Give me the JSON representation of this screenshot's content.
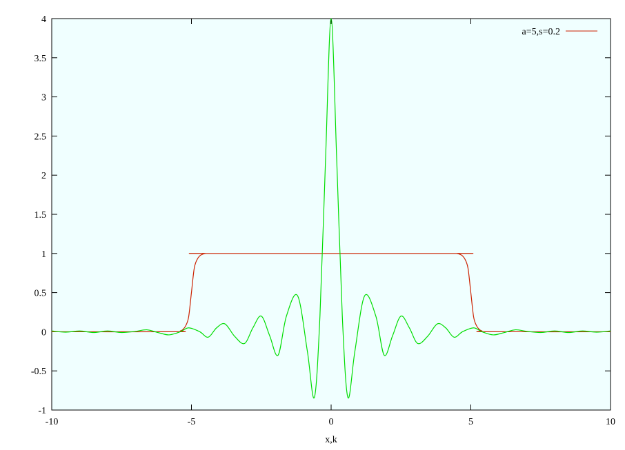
{
  "chart_data": {
    "type": "line",
    "title": "",
    "xlabel": "x,k",
    "ylabel": "",
    "xlim": [
      -10,
      10
    ],
    "ylim": [
      -1,
      4
    ],
    "x_ticks": [
      -10,
      -5,
      0,
      5,
      10
    ],
    "y_ticks": [
      -1,
      -0.5,
      0,
      0.5,
      1,
      1.5,
      2,
      2.5,
      3,
      3.5,
      4
    ],
    "x_tick_labels": [
      "-10",
      "-5",
      "0",
      "5",
      "10"
    ],
    "y_tick_labels": [
      "-1",
      "-0.5",
      "0",
      "0.5",
      "1",
      "1.5",
      "2",
      "2.5",
      "3",
      "3.5",
      "4"
    ],
    "background": "#f0ffff",
    "grid": false,
    "legend_position": "top-right",
    "series": [
      {
        "name": "a=5,s=0.2",
        "color": "#cc2200",
        "x": [
          -10,
          -5.6,
          -5.4,
          -5.3,
          -5.2,
          -5.1,
          -5.0,
          -4.9,
          -4.8,
          -4.7,
          -4.6,
          -4.5,
          -4.4,
          4.4,
          4.5,
          4.6,
          4.7,
          4.8,
          4.9,
          5.0,
          5.1,
          5.2,
          5.3,
          5.4,
          5.6,
          10
        ],
        "y": [
          0,
          0,
          0.01,
          0.03,
          0.08,
          0.19,
          0.5,
          0.81,
          0.92,
          0.97,
          0.99,
          1.0,
          1.0,
          1.0,
          1.0,
          0.99,
          0.97,
          0.92,
          0.81,
          0.5,
          0.19,
          0.08,
          0.03,
          0.01,
          0,
          0
        ]
      },
      {
        "name": "",
        "color": "#00dd00",
        "x": [
          -10,
          -9.5,
          -9,
          -8.5,
          -8,
          -7.5,
          -7,
          -6.6,
          -6.2,
          -5.8,
          -5.4,
          -5.1,
          -4.7,
          -4.4,
          -4.1,
          -3.8,
          -3.45,
          -3.1,
          -2.8,
          -2.5,
          -2.2,
          -1.9,
          -1.6,
          -1.2,
          -0.85,
          -0.6,
          -0.4,
          -0.2,
          0,
          0.2,
          0.4,
          0.6,
          0.85,
          1.2,
          1.6,
          1.9,
          2.2,
          2.5,
          2.8,
          3.1,
          3.45,
          3.8,
          4.1,
          4.4,
          4.7,
          5.1,
          5.4,
          5.8,
          6.2,
          6.6,
          7,
          7.5,
          8,
          8.5,
          9,
          9.5,
          10
        ],
        "y": [
          0.01,
          -0.005,
          0.01,
          -0.01,
          0.01,
          -0.01,
          0.005,
          0.025,
          -0.01,
          -0.04,
          0.0,
          0.05,
          0.0,
          -0.07,
          0.05,
          0.1,
          -0.06,
          -0.15,
          0.05,
          0.2,
          -0.05,
          -0.3,
          0.2,
          0.46,
          -0.25,
          -0.84,
          0.2,
          2.2,
          4.0,
          2.2,
          0.2,
          -0.84,
          -0.25,
          0.46,
          0.2,
          -0.3,
          -0.05,
          0.2,
          0.05,
          -0.15,
          -0.06,
          0.1,
          0.05,
          -0.07,
          0.0,
          0.05,
          0.0,
          -0.04,
          -0.01,
          0.025,
          0.005,
          -0.01,
          0.01,
          -0.01,
          0.01,
          -0.005,
          0.01
        ]
      }
    ]
  }
}
